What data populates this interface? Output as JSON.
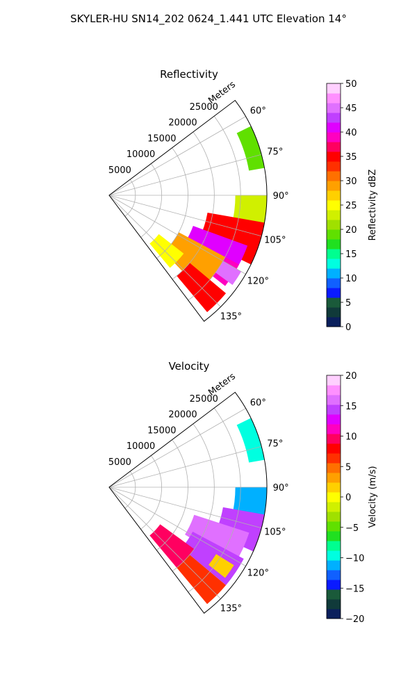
{
  "figure": {
    "title": "SKYLER-HU  SN14_202  0624_1.441 UTC Elevation 14°"
  },
  "chart_data": [
    {
      "type": "heatmap",
      "projection": "polar-sector",
      "title": "Reflectivity",
      "radial_label": "Meters",
      "theta_range_deg": [
        53,
        143
      ],
      "r_range_m": [
        0,
        30000
      ],
      "r_ticks": [
        5000,
        10000,
        15000,
        20000,
        25000
      ],
      "r_tick_labels": [
        "5000",
        "10000",
        "15000",
        "20000",
        "25000"
      ],
      "theta_ticks": [
        60,
        75,
        90,
        105,
        120,
        135
      ],
      "theta_tick_labels": [
        "60°",
        "75°",
        "90°",
        "105°",
        "120°",
        "135°"
      ],
      "grid": true,
      "colorbar": {
        "label": "Reflectivity dBZ",
        "vmin": 0,
        "vmax": 50,
        "ticks": [
          0,
          5,
          10,
          15,
          20,
          25,
          30,
          35,
          40,
          45,
          50
        ],
        "tick_labels": [
          "0",
          "5",
          "10",
          "15",
          "20",
          "25",
          "30",
          "35",
          "40",
          "45",
          "50"
        ],
        "colors": [
          "#0a1f5c",
          "#103a3a",
          "#1a5a3a",
          "#0a1aff",
          "#1060ff",
          "#00b0ff",
          "#00ffe0",
          "#00ff90",
          "#20e020",
          "#60e000",
          "#a0e000",
          "#d0f000",
          "#ffff00",
          "#ffd000",
          "#ffa000",
          "#ff7000",
          "#ff3000",
          "#ff0000",
          "#ff0060",
          "#ff00c0",
          "#e000ff",
          "#c040ff",
          "#e070ff",
          "#ff90ff",
          "#ffd0ff"
        ]
      },
      "echoes": [
        {
          "theta": [
            64,
            80
          ],
          "r": [
            27000,
            30000
          ],
          "value": 18
        },
        {
          "theta": [
            90,
            104
          ],
          "r": [
            24000,
            30000
          ],
          "value": 22
        },
        {
          "theta": [
            100,
            116
          ],
          "r": [
            19000,
            30000
          ],
          "value": 34
        },
        {
          "theta": [
            110,
            122
          ],
          "r": [
            17000,
            28000
          ],
          "value": 40
        },
        {
          "theta": [
            118,
            128
          ],
          "r": [
            18000,
            28000
          ],
          "value": 38
        },
        {
          "theta": [
            120,
            126
          ],
          "r": [
            24000,
            29000
          ],
          "value": 45
        },
        {
          "theta": [
            118,
            136
          ],
          "r": [
            15000,
            25000
          ],
          "value": 28
        },
        {
          "theta": [
            128,
            140
          ],
          "r": [
            12000,
            18000
          ],
          "value": 24
        },
        {
          "theta": [
            130,
            140
          ],
          "r": [
            20000,
            29000
          ],
          "value": 34
        }
      ]
    },
    {
      "type": "heatmap",
      "projection": "polar-sector",
      "title": "Velocity",
      "radial_label": "Meters",
      "theta_range_deg": [
        53,
        143
      ],
      "r_range_m": [
        0,
        30000
      ],
      "r_ticks": [
        5000,
        10000,
        15000,
        20000,
        25000
      ],
      "r_tick_labels": [
        "5000",
        "10000",
        "15000",
        "20000",
        "25000"
      ],
      "theta_ticks": [
        60,
        75,
        90,
        105,
        120,
        135
      ],
      "theta_tick_labels": [
        "60°",
        "75°",
        "90°",
        "105°",
        "120°",
        "135°"
      ],
      "grid": true,
      "colorbar": {
        "label": "Velocity (m/s)",
        "vmin": -20,
        "vmax": 20,
        "ticks": [
          -20,
          -15,
          -10,
          -5,
          0,
          5,
          10,
          15,
          20
        ],
        "tick_labels": [
          "−20",
          "−15",
          "−10",
          "−5",
          "0",
          "5",
          "10",
          "15",
          "20"
        ],
        "colors": [
          "#0a1f5c",
          "#103a3a",
          "#1a5a3a",
          "#0a1aff",
          "#1060ff",
          "#00b0ff",
          "#00ffe0",
          "#00ff90",
          "#20e020",
          "#60e000",
          "#a0e000",
          "#d0f000",
          "#ffff00",
          "#ffd000",
          "#ffa000",
          "#ff7000",
          "#ff3000",
          "#ff0000",
          "#ff0060",
          "#ff00c0",
          "#e000ff",
          "#c040ff",
          "#e070ff",
          "#ff90ff",
          "#ffd0ff"
        ]
      },
      "echoes": [
        {
          "theta": [
            64,
            80
          ],
          "r": [
            27000,
            30000
          ],
          "value": -10
        },
        {
          "theta": [
            90,
            104
          ],
          "r": [
            24000,
            30000
          ],
          "value": -12
        },
        {
          "theta": [
            100,
            114
          ],
          "r": [
            22000,
            30000
          ],
          "value": 15
        },
        {
          "theta": [
            108,
            122
          ],
          "r": [
            17000,
            28000
          ],
          "value": 16
        },
        {
          "theta": [
            118,
            130
          ],
          "r": [
            18000,
            29000
          ],
          "value": 14
        },
        {
          "theta": [
            122,
            128
          ],
          "r": [
            24000,
            28000
          ],
          "value": 2
        },
        {
          "theta": [
            126,
            140
          ],
          "r": [
            12000,
            20000
          ],
          "value": 9
        },
        {
          "theta": [
            130,
            140
          ],
          "r": [
            20000,
            29000
          ],
          "value": 7
        }
      ]
    }
  ]
}
